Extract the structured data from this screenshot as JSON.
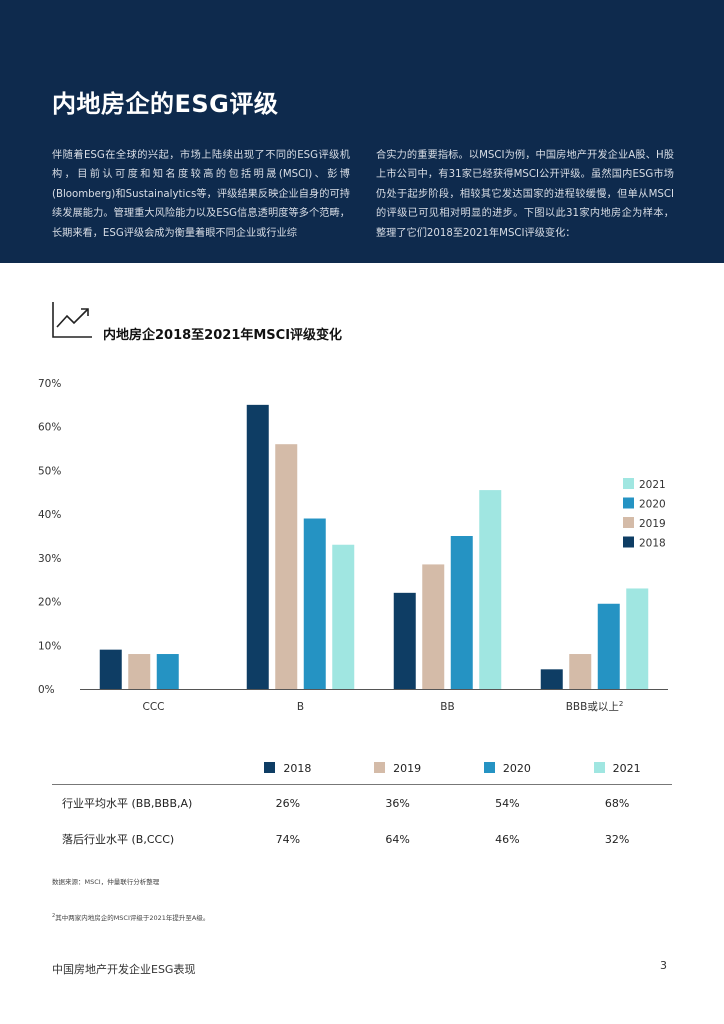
{
  "header": {
    "title": "内地房企的ESG评级",
    "intro_left": "伴随着ESG在全球的兴起，市场上陆续出现了不同的ESG评级机构，目前认可度和知名度较高的包括明晟(MSCI)、彭博(Bloomberg)和Sustainalytics等，评级结果反映企业自身的可持续发展能力。管理重大风险能力以及ESG信息透明度等多个范畴，长期来看，ESG评级会成为衡量着眼不同企业或行业综",
    "intro_right": "合实力的重要指标。以MSCI为例，中国房地产开发企业A股、H股上市公司中，有31家已经获得MSCI公开评级。虽然国内ESG市场仍处于起步阶段，相较其它发达国家的进程较缓慢，但单从MSCI的评级已可见相对明显的进步。下图以此31家内地房企为样本，整理了它们2018至2021年MSCI评级变化："
  },
  "chart_title": "内地房企2018至2021年MSCI评级变化",
  "chart_data": {
    "type": "bar",
    "title": "内地房企2018至2021年MSCI评级变化",
    "categories": [
      "CCC",
      "B",
      "BB",
      "BBB或以上"
    ],
    "category_superscripts": [
      "",
      "",
      "",
      "2"
    ],
    "series": [
      {
        "name": "2018",
        "color": "#0e3d64",
        "values": [
          9,
          65,
          22,
          4.5
        ]
      },
      {
        "name": "2019",
        "color": "#d4bba8",
        "values": [
          8,
          56,
          28.5,
          8
        ]
      },
      {
        "name": "2020",
        "color": "#2593c3",
        "values": [
          8,
          39,
          35,
          19.5
        ]
      },
      {
        "name": "2021",
        "color": "#a0e6e1",
        "values": [
          0,
          33,
          45.5,
          23
        ]
      }
    ],
    "y_ticks": [
      "0%",
      "10%",
      "20%",
      "30%",
      "40%",
      "50%",
      "60%",
      "70%"
    ],
    "ylim": [
      0,
      70
    ],
    "legend_position": "right",
    "legend_order": [
      "2021",
      "2020",
      "2019",
      "2018"
    ],
    "xlabel": "",
    "ylabel": ""
  },
  "table": {
    "header_years": [
      "2018",
      "2019",
      "2020",
      "2021"
    ],
    "rows": [
      {
        "label": "行业平均水平 (BB,BBB,A)",
        "values": [
          "26%",
          "36%",
          "54%",
          "68%"
        ]
      },
      {
        "label": "落后行业水平 (B,CCC)",
        "values": [
          "74%",
          "64%",
          "46%",
          "32%"
        ]
      }
    ]
  },
  "source_note": "数据来源：MSCI，仲量联行分析整理",
  "footnote_marker": "2",
  "footnote_text": "其中两家内地房企的MSCI评级于2021年提升至A级。",
  "footer": {
    "title": "中国房地产开发企业ESG表现",
    "page_number": "3"
  }
}
